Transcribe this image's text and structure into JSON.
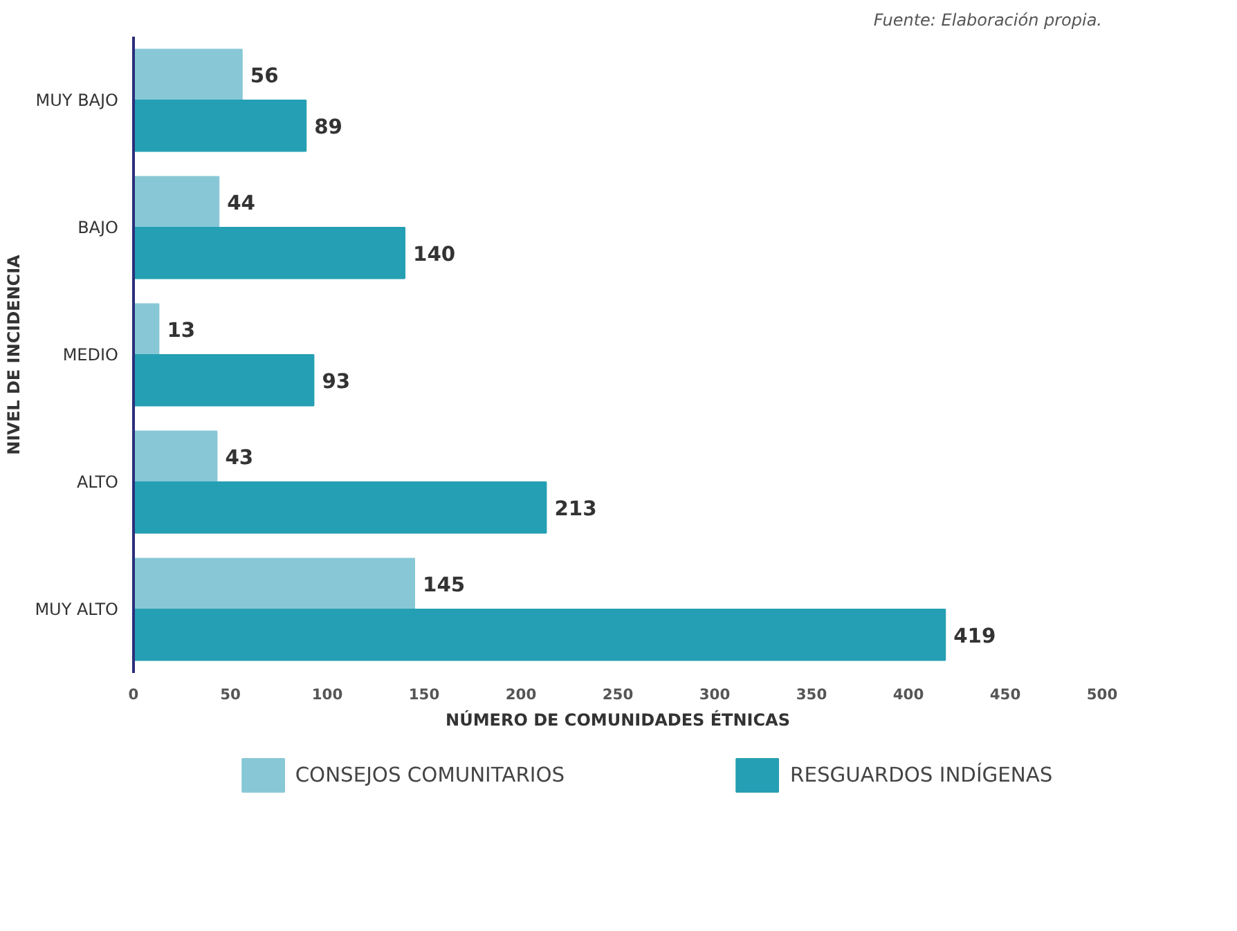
{
  "chart_data": {
    "type": "bar",
    "orientation": "horizontal",
    "categories": [
      "MUY BAJO",
      "BAJO",
      "MEDIO",
      "ALTO",
      "MUY ALTO"
    ],
    "series": [
      {
        "name": "CONSEJOS COMUNITARIOS",
        "color": "#88c8d6",
        "values": [
          56,
          44,
          13,
          43,
          145
        ]
      },
      {
        "name": "RESGUARDOS INDÍGENAS",
        "color": "#259fb3",
        "values": [
          89,
          140,
          93,
          213,
          419
        ]
      }
    ],
    "xlim": [
      0,
      500
    ],
    "xticks": [
      0,
      50,
      100,
      150,
      200,
      250,
      300,
      350,
      400,
      450,
      500
    ],
    "xlabel": "NÚMERO DE COMUNIDADES ÉTNICAS",
    "ylabel": "NIVEL DE INCIDENCIA",
    "annotations": [
      "Fuente: Elaboración propia."
    ],
    "data_labels": true,
    "grid": false,
    "legend": "bottom"
  }
}
